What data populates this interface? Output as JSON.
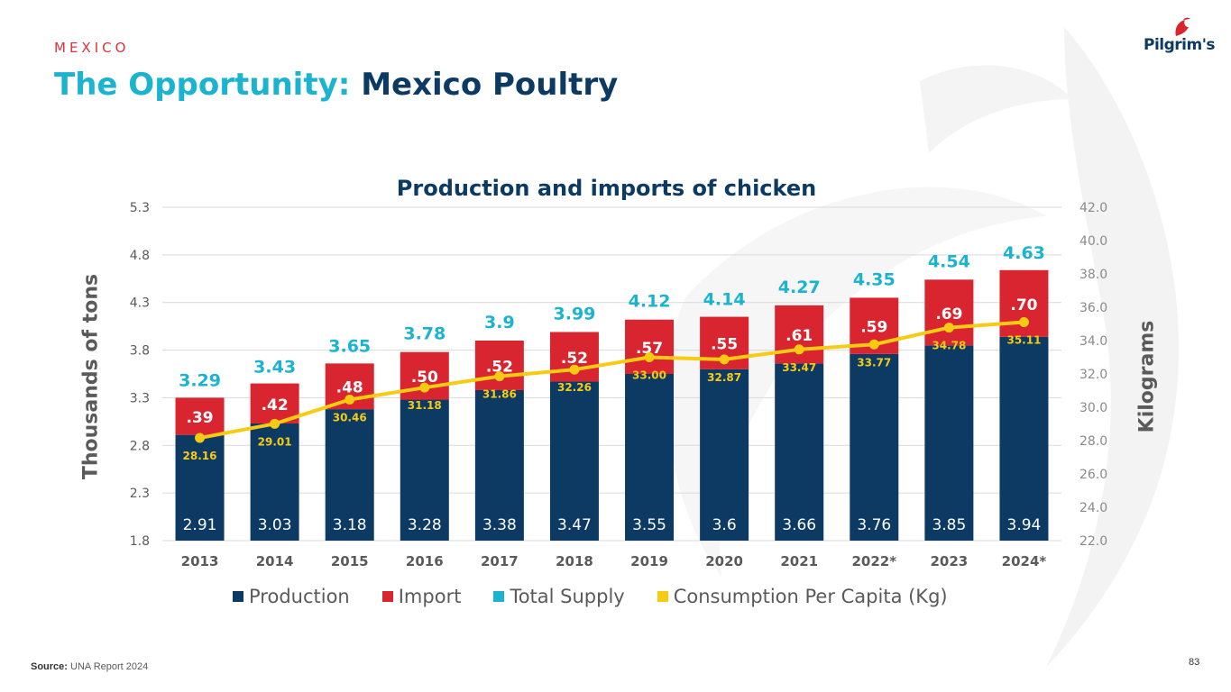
{
  "header": {
    "section": "MEXICO",
    "title_accent": "The Opportunity:",
    "title_main": "Mexico Poultry"
  },
  "logo": {
    "text": "Pilgrim's"
  },
  "colors": {
    "production": "#0d3a63",
    "import": "#d9252f",
    "total_supply": "#1ab4d0",
    "consumption": "#f7cb14"
  },
  "chart_data": {
    "type": "bar",
    "stacked": true,
    "title": "Production and imports of chicken",
    "ylabel": "Thousands of tons",
    "y2label": "Kilograms",
    "categories": [
      "2013",
      "2014",
      "2015",
      "2016",
      "2017",
      "2018",
      "2019",
      "2020",
      "2021",
      "2022*",
      "2023",
      "2024*"
    ],
    "ylim": [
      1.8,
      5.3
    ],
    "yticks": [
      "1.8",
      "2.3",
      "2.8",
      "3.3",
      "3.8",
      "4.3",
      "4.8",
      "5.3"
    ],
    "y2lim": [
      22.0,
      42.0
    ],
    "y2ticks": [
      "22.0",
      "24.0",
      "26.0",
      "28.0",
      "30.0",
      "32.0",
      "34.0",
      "36.0",
      "38.0",
      "40.0",
      "42.0"
    ],
    "grid": true,
    "series": [
      {
        "name": "Production",
        "values": [
          2.91,
          3.03,
          3.18,
          3.28,
          3.38,
          3.47,
          3.55,
          3.6,
          3.66,
          3.76,
          3.85,
          3.94
        ],
        "labels": [
          "2.91",
          "3.03",
          "3.18",
          "3.28",
          "3.38",
          "3.47",
          "3.55",
          "3.6",
          "3.66",
          "3.76",
          "3.85",
          "3.94"
        ]
      },
      {
        "name": "Import",
        "values": [
          0.39,
          0.42,
          0.48,
          0.5,
          0.52,
          0.52,
          0.57,
          0.55,
          0.61,
          0.59,
          0.69,
          0.7
        ],
        "labels": [
          ".39",
          ".42",
          ".48",
          ".50",
          ".52",
          ".52",
          ".57",
          ".55",
          ".61",
          ".59",
          ".69",
          ".70"
        ]
      },
      {
        "name": "Total Supply",
        "values": [
          3.29,
          3.43,
          3.65,
          3.78,
          3.9,
          3.99,
          4.12,
          4.14,
          4.27,
          4.35,
          4.54,
          4.63
        ],
        "labels": [
          "3.29",
          "3.43",
          "3.65",
          "3.78",
          "3.9",
          "3.99",
          "4.12",
          "4.14",
          "4.27",
          "4.35",
          "4.54",
          "4.63"
        ]
      },
      {
        "name": "Consumption Per Capita (Kg)",
        "axis": "right",
        "values": [
          28.16,
          29.01,
          30.46,
          31.18,
          31.86,
          32.26,
          33.0,
          32.87,
          33.47,
          33.77,
          34.78,
          35.11
        ],
        "labels": [
          "28.16",
          "29.01",
          "30.46",
          "31.18",
          "31.86",
          "32.26",
          "33.00",
          "32.87",
          "33.47",
          "33.77",
          "34.78",
          "35.11"
        ]
      }
    ],
    "legend": [
      "Production",
      "Import",
      "Total Supply",
      "Consumption Per Capita (Kg)"
    ],
    "legend_position": "bottom"
  },
  "footer": {
    "source_label": "Source:",
    "source_text": "UNA Report 2024",
    "page_number": "83"
  }
}
